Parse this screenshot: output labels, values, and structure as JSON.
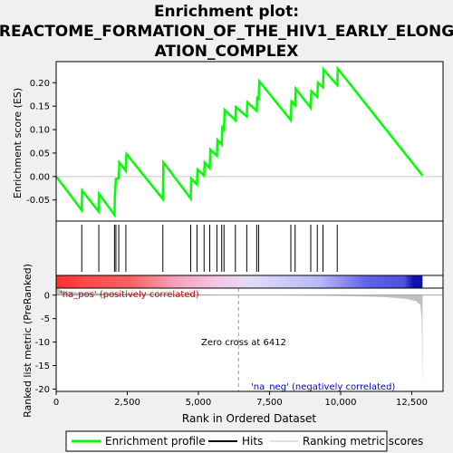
{
  "title_line1": "Enrichment plot:",
  "title_line2": "REACTOME_FORMATION_OF_THE_HIV1_EARLY_ELONG",
  "title_line3": "ATION_COMPLEX",
  "colors": {
    "profile": "#00ff00",
    "hits": "#000000",
    "zero_cross": "#a0a0a0",
    "pos_label": "#cc0000",
    "neg_label": "#0000cc",
    "metric_fill": "#c0c0c0"
  },
  "chart_data": {
    "type": "line",
    "xlabel": "Rank in Ordered Dataset",
    "top_ylabel": "Enrichment score (ES)",
    "bottom_ylabel": "Ranked list metric (PreRanked)",
    "x_range": [
      0,
      13600
    ],
    "x_ticks": [
      {
        "value": 0,
        "label": "0"
      },
      {
        "value": 2500,
        "label": "2,500"
      },
      {
        "value": 5000,
        "label": "5,000"
      },
      {
        "value": 7500,
        "label": "7,500"
      },
      {
        "value": 10000,
        "label": "10,000"
      },
      {
        "value": 12500,
        "label": "12,500"
      }
    ],
    "es_range": [
      -0.095,
      0.245
    ],
    "es_ticks": [
      {
        "value": -0.05,
        "label": "-0.05"
      },
      {
        "value": 0.0,
        "label": "0.00"
      },
      {
        "value": 0.05,
        "label": "0.05"
      },
      {
        "value": 0.1,
        "label": "0.10"
      },
      {
        "value": 0.15,
        "label": "0.15"
      },
      {
        "value": 0.2,
        "label": "0.20"
      }
    ],
    "metric_range": [
      -20.5,
      1.5
    ],
    "metric_ticks": [
      {
        "value": 0,
        "label": "0"
      },
      {
        "value": -5,
        "label": "-5"
      },
      {
        "value": -10,
        "label": "-10"
      },
      {
        "value": -15,
        "label": "-15"
      },
      {
        "value": -20,
        "label": "-20"
      }
    ],
    "grid": false,
    "legend_placement": "bottom",
    "enrichment_profile": [
      [
        0,
        0.0
      ],
      [
        900,
        -0.072
      ],
      [
        910,
        -0.03
      ],
      [
        1500,
        -0.075
      ],
      [
        1510,
        -0.037
      ],
      [
        2050,
        -0.082
      ],
      [
        2060,
        -0.043
      ],
      [
        2100,
        -0.005
      ],
      [
        2200,
        -0.004
      ],
      [
        2220,
        0.03
      ],
      [
        2450,
        0.012
      ],
      [
        2470,
        0.048
      ],
      [
        3750,
        -0.048
      ],
      [
        3770,
        0.03
      ],
      [
        4730,
        -0.047
      ],
      [
        4750,
        -0.005
      ],
      [
        4950,
        -0.017
      ],
      [
        4970,
        0.015
      ],
      [
        5200,
        0.002
      ],
      [
        5220,
        0.03
      ],
      [
        5400,
        0.018
      ],
      [
        5420,
        0.057
      ],
      [
        5650,
        0.044
      ],
      [
        5670,
        0.078
      ],
      [
        5820,
        0.068
      ],
      [
        5840,
        0.104
      ],
      [
        5900,
        0.1
      ],
      [
        5920,
        0.142
      ],
      [
        6300,
        0.12
      ],
      [
        6320,
        0.148
      ],
      [
        6700,
        0.128
      ],
      [
        6720,
        0.158
      ],
      [
        7050,
        0.14
      ],
      [
        7070,
        0.168
      ],
      [
        7120,
        0.166
      ],
      [
        7140,
        0.203
      ],
      [
        8250,
        0.12
      ],
      [
        8270,
        0.16
      ],
      [
        8400,
        0.152
      ],
      [
        8420,
        0.187
      ],
      [
        8950,
        0.146
      ],
      [
        8970,
        0.182
      ],
      [
        9180,
        0.17
      ],
      [
        9200,
        0.2
      ],
      [
        9380,
        0.19
      ],
      [
        9400,
        0.228
      ],
      [
        9880,
        0.195
      ],
      [
        9900,
        0.23
      ],
      [
        12880,
        0.002
      ]
    ],
    "hits": [
      900,
      1500,
      2050,
      2100,
      2200,
      2450,
      3750,
      4730,
      4950,
      5200,
      5400,
      5650,
      5820,
      5900,
      6300,
      6700,
      7050,
      7120,
      8250,
      8400,
      8950,
      9180,
      9380,
      9880
    ],
    "ranking_metric": [
      [
        0,
        1.5
      ],
      [
        200,
        1.0
      ],
      [
        500,
        0.7
      ],
      [
        1000,
        0.5
      ],
      [
        2500,
        0.3
      ],
      [
        4000,
        0.2
      ],
      [
        6412,
        0.0
      ],
      [
        8000,
        -0.05
      ],
      [
        10000,
        -0.2
      ],
      [
        11500,
        -0.4
      ],
      [
        12300,
        -0.8
      ],
      [
        12650,
        -1.3
      ],
      [
        12800,
        -2.0
      ],
      [
        12850,
        -5.0
      ],
      [
        12880,
        -19.5
      ]
    ],
    "heatmap_stops": [
      [
        0,
        "#ff2e2e"
      ],
      [
        0.08,
        "#ff4a4a"
      ],
      [
        0.2,
        "#f86060"
      ],
      [
        0.32,
        "#f5a0b8"
      ],
      [
        0.45,
        "#f4c8ec"
      ],
      [
        0.52,
        "#e4dcf4"
      ],
      [
        0.6,
        "#d0d0f8"
      ],
      [
        0.72,
        "#b8b8f8"
      ],
      [
        0.78,
        "#9090f0"
      ],
      [
        0.85,
        "#6060e8"
      ],
      [
        0.95,
        "#5050e0"
      ],
      [
        0.975,
        "#1010b0"
      ],
      [
        1,
        "#1010b0"
      ]
    ],
    "zero_cross_rank": 6412,
    "zero_cross_label": "Zero cross at 6412",
    "pos_label": "'na_pos' (positively correlated)",
    "neg_label": "'na_neg' (negatively correlated)",
    "legend": [
      {
        "label": "Enrichment profile",
        "kind": "green-line"
      },
      {
        "label": "Hits",
        "kind": "black-line"
      },
      {
        "label": "Ranking metric scores",
        "kind": "gray-line"
      }
    ]
  }
}
